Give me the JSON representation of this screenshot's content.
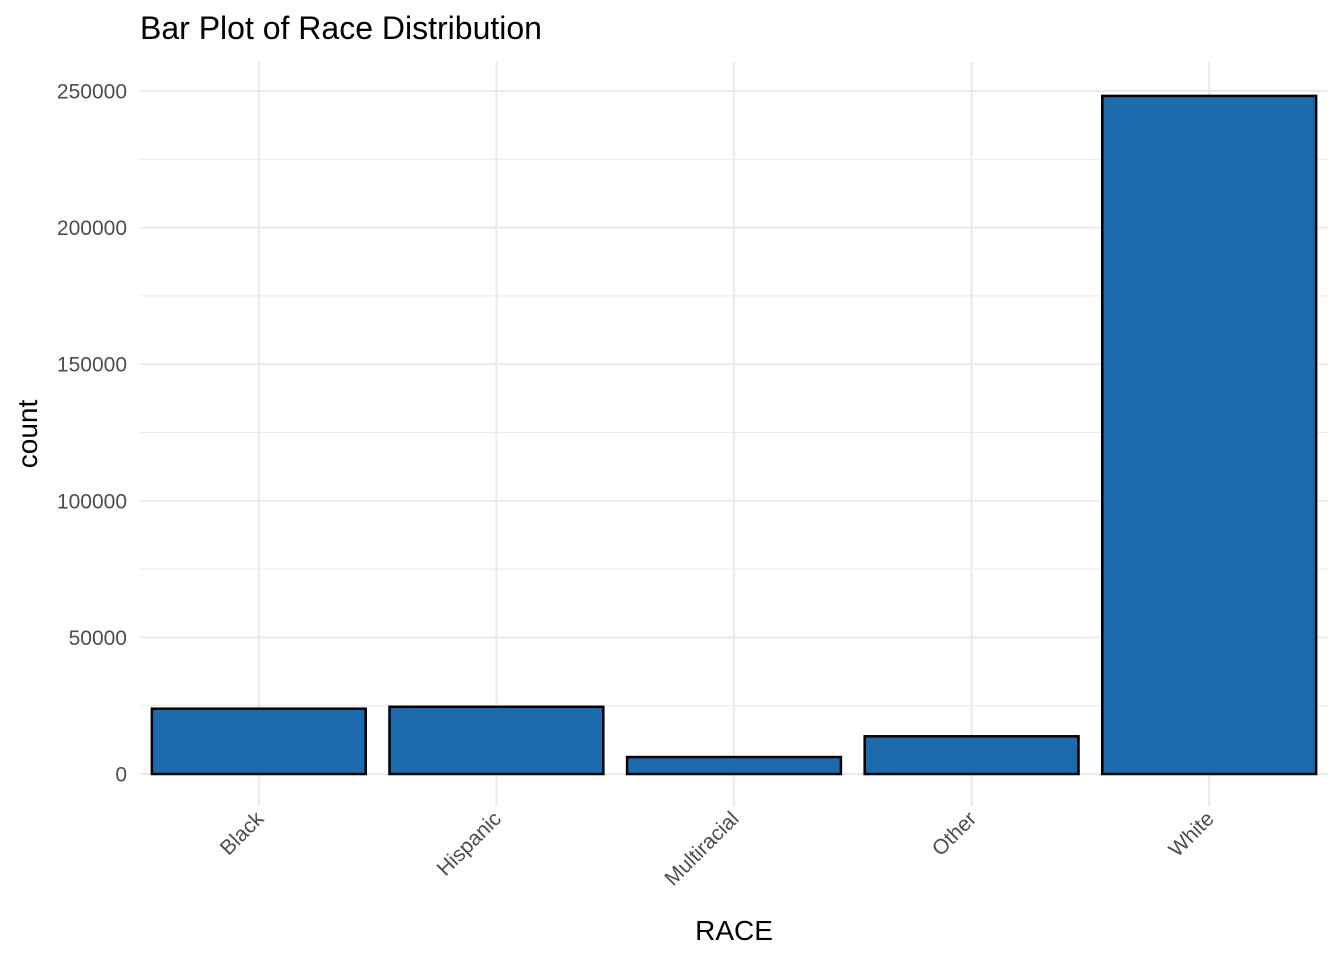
{
  "chart_data": {
    "type": "bar",
    "title": "Bar Plot of Race Distribution",
    "xlabel": "RACE",
    "ylabel": "count",
    "categories": [
      "Black",
      "Hispanic",
      "Multiracial",
      "Other",
      "White"
    ],
    "values": [
      23900,
      24600,
      6200,
      13800,
      248200
    ],
    "ylim": [
      0,
      250000
    ],
    "yticks": [
      0,
      50000,
      100000,
      150000,
      200000,
      250000
    ],
    "ytick_labels": [
      "0",
      "50000",
      "100000",
      "150000",
      "200000",
      "250000"
    ],
    "grid": true,
    "legend": "none",
    "bar_color": "#1b6aac",
    "bar_outline": "#000000",
    "xtick_rotation": "45"
  }
}
